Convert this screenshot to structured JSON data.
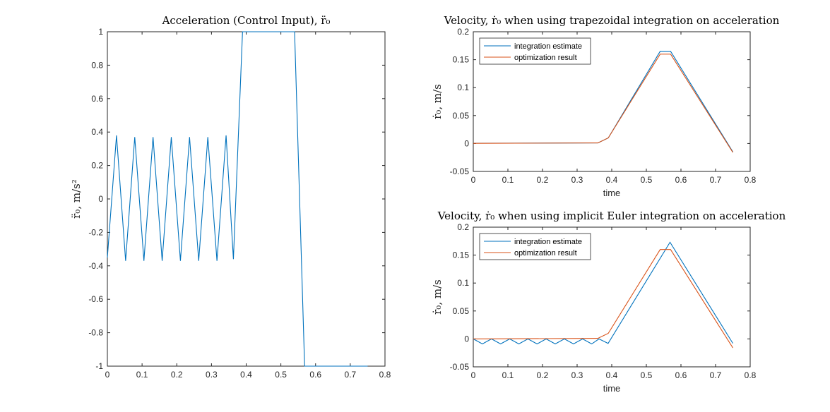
{
  "chart_data": [
    {
      "type": "line",
      "title": "Acceleration (Control Input), r̈₀",
      "ylabel": "r̈₀, m/s²",
      "xlabel": "",
      "xlim": [
        0,
        0.8
      ],
      "ylim": [
        -1,
        1
      ],
      "xticks": [
        0,
        0.1,
        0.2,
        0.3,
        0.4,
        0.5,
        0.6,
        0.7,
        0.8
      ],
      "xtick_labels": [
        "0",
        "0.1",
        "0.2",
        "0.3",
        "0.4",
        "0.5",
        "0.6",
        "0.7",
        "0.8"
      ],
      "yticks": [
        -1,
        -0.8,
        -0.6,
        -0.4,
        -0.2,
        0,
        0.2,
        0.4,
        0.6,
        0.8,
        1
      ],
      "ytick_labels": [
        "-1",
        "-0.8",
        "-0.6",
        "-0.4",
        "-0.2",
        "0",
        "0.2",
        "0.4",
        "0.6",
        "0.8",
        "1"
      ],
      "grid": false,
      "legend": null,
      "series": [
        {
          "color": "#0072BD",
          "x": [
            0,
            0.0263,
            0.0526,
            0.0789,
            0.1053,
            0.1316,
            0.1579,
            0.1842,
            0.2105,
            0.2368,
            0.2632,
            0.2895,
            0.3158,
            0.3421,
            0.3632,
            0.3895,
            0.4158,
            0.4421,
            0.4684,
            0.4947,
            0.5395,
            0.5684,
            0.5947,
            0.6211,
            0.6474,
            0.6737,
            0.7,
            0.7263,
            0.75
          ],
          "y": [
            -0.35,
            0.38,
            -0.37,
            0.37,
            -0.37,
            0.37,
            -0.37,
            0.37,
            -0.37,
            0.37,
            -0.37,
            0.37,
            -0.37,
            0.38,
            -0.36,
            1,
            1,
            1,
            1,
            1,
            1,
            -1,
            -1,
            -1,
            -1,
            -1,
            -1,
            -1,
            -1
          ]
        }
      ]
    },
    {
      "type": "line",
      "title": "Velocity, ṙ₀ when using trapezoidal integration on acceleration",
      "ylabel": "ṙ₀, m/s",
      "xlabel": "time",
      "xlim": [
        0,
        0.8
      ],
      "ylim": [
        -0.05,
        0.2
      ],
      "xticks": [
        0,
        0.1,
        0.2,
        0.3,
        0.4,
        0.5,
        0.6,
        0.7,
        0.8
      ],
      "xtick_labels": [
        "0",
        "0.1",
        "0.2",
        "0.3",
        "0.4",
        "0.5",
        "0.6",
        "0.7",
        "0.8"
      ],
      "yticks": [
        -0.05,
        0,
        0.05,
        0.1,
        0.15,
        0.2
      ],
      "ytick_labels": [
        "-0.05",
        "0",
        "0.05",
        "0.1",
        "0.15",
        "0.2"
      ],
      "grid": false,
      "legend": "top-left",
      "series": [
        {
          "name": "integration estimate",
          "color": "#0072BD",
          "x": [
            0,
            0.36,
            0.39,
            0.54,
            0.57,
            0.75
          ],
          "y": [
            0.0005,
            0.001,
            0.01,
            0.165,
            0.165,
            -0.015
          ]
        },
        {
          "name": "optimization result",
          "color": "#D95319",
          "x": [
            0,
            0.36,
            0.39,
            0.54,
            0.57,
            0.75
          ],
          "y": [
            0.0003,
            0.001,
            0.01,
            0.16,
            0.16,
            -0.016
          ]
        }
      ]
    },
    {
      "type": "line",
      "title": "Velocity, ṙ₀ when using implicit Euler integration on acceleration",
      "ylabel": "ṙ₀, m/s",
      "xlabel": "time",
      "xlim": [
        0,
        0.8
      ],
      "ylim": [
        -0.05,
        0.2
      ],
      "xticks": [
        0,
        0.1,
        0.2,
        0.3,
        0.4,
        0.5,
        0.6,
        0.7,
        0.8
      ],
      "xtick_labels": [
        "0",
        "0.1",
        "0.2",
        "0.3",
        "0.4",
        "0.5",
        "0.6",
        "0.7",
        "0.8"
      ],
      "yticks": [
        -0.05,
        0,
        0.05,
        0.1,
        0.15,
        0.2
      ],
      "ytick_labels": [
        "-0.05",
        "0",
        "0.05",
        "0.1",
        "0.15",
        "0.2"
      ],
      "grid": false,
      "legend": "top-left",
      "series": [
        {
          "name": "integration estimate",
          "color": "#0072BD",
          "x": [
            0,
            0.0263,
            0.0526,
            0.0789,
            0.1053,
            0.1316,
            0.1579,
            0.1842,
            0.2105,
            0.2368,
            0.2632,
            0.2895,
            0.3158,
            0.3421,
            0.3632,
            0.3895,
            0.5684,
            0.75
          ],
          "y": [
            0,
            -0.009,
            0,
            -0.009,
            0,
            -0.009,
            0,
            -0.009,
            0,
            -0.009,
            0,
            -0.009,
            0,
            -0.009,
            0,
            -0.008,
            0.173,
            -0.008
          ]
        },
        {
          "name": "optimization result",
          "color": "#D95319",
          "x": [
            0,
            0.36,
            0.39,
            0.54,
            0.57,
            0.75
          ],
          "y": [
            0,
            0.001,
            0.01,
            0.16,
            0.16,
            -0.016
          ]
        }
      ]
    }
  ]
}
